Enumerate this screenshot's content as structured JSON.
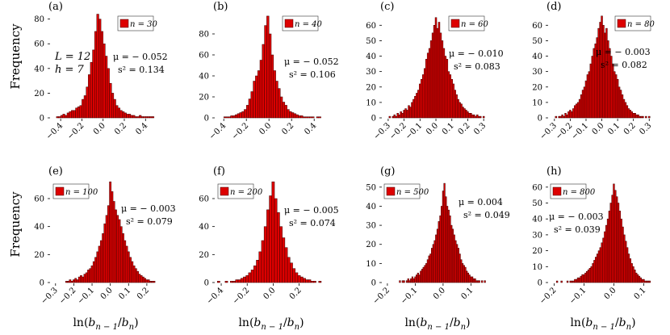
{
  "figure": {
    "ylabel": "Frequency",
    "xlabel_base": "ln(",
    "xlabel_tail": ")",
    "xlabel_num": "b",
    "xlabel_num_sub": "n − 1",
    "xlabel_slash": "/",
    "xlabel_den": "b",
    "xlabel_den_sub": "n"
  },
  "colors": {
    "bar": "#dd0000",
    "bar_edge": "#3a0000",
    "axis": "#000000"
  },
  "chart_data": [
    {
      "type": "bar",
      "panel": "(a)",
      "legend": "n = 30",
      "xlim": [
        -0.5,
        0.55
      ],
      "ylim": [
        0,
        85
      ],
      "xticks": [
        -0.4,
        -0.2,
        0.0,
        0.2,
        0.4
      ],
      "xtick_labels": [
        "−0.4",
        "−0.2",
        "0.0",
        "0.2",
        "0.4"
      ],
      "yticks": [
        0,
        20,
        40,
        60,
        80
      ],
      "ytick_labels": [
        "0",
        "20",
        "40",
        "60",
        "80"
      ],
      "mu": "μ = − 0.052",
      "s2": "s² = 0.134",
      "extra": [
        "L = 12",
        "h = 7"
      ],
      "bins_x": [
        -0.43,
        -0.41,
        -0.39,
        -0.37,
        -0.35,
        -0.33,
        -0.31,
        -0.29,
        -0.27,
        -0.25,
        -0.23,
        -0.21,
        -0.19,
        -0.17,
        -0.15,
        -0.13,
        -0.11,
        -0.09,
        -0.07,
        -0.05,
        -0.03,
        -0.01,
        0.01,
        0.03,
        0.05,
        0.07,
        0.09,
        0.11,
        0.13,
        0.15,
        0.17,
        0.19,
        0.21,
        0.23,
        0.25,
        0.27,
        0.29,
        0.31,
        0.33,
        0.35,
        0.37,
        0.39,
        0.41,
        0.43,
        0.45,
        0.47
      ],
      "values": [
        1,
        1,
        2,
        3,
        2,
        4,
        5,
        6,
        6,
        8,
        9,
        10,
        15,
        18,
        25,
        35,
        45,
        55,
        70,
        84,
        80,
        70,
        60,
        50,
        40,
        28,
        20,
        15,
        10,
        8,
        6,
        5,
        4,
        3,
        3,
        2,
        2,
        1,
        1,
        2,
        1,
        1,
        1,
        1,
        1,
        1
      ]
    },
    {
      "type": "bar",
      "panel": "(b)",
      "legend": "n = 40",
      "xlim": [
        -0.48,
        0.52
      ],
      "ylim": [
        0,
        100
      ],
      "xticks": [
        -0.4,
        -0.2,
        0.0,
        0.2,
        0.4
      ],
      "xtick_labels": [
        "−0.4",
        "−0.2",
        "0.0",
        "0.2",
        "0.4"
      ],
      "yticks": [
        0,
        20,
        40,
        60,
        80
      ],
      "ytick_labels": [
        "0",
        "20",
        "40",
        "60",
        "80"
      ],
      "mu": "μ = − 0.052",
      "s2": "s² = 0.106",
      "bins_x": [
        -0.39,
        -0.37,
        -0.35,
        -0.33,
        -0.31,
        -0.29,
        -0.27,
        -0.25,
        -0.23,
        -0.21,
        -0.19,
        -0.17,
        -0.15,
        -0.13,
        -0.11,
        -0.09,
        -0.07,
        -0.05,
        -0.03,
        -0.01,
        0.01,
        0.03,
        0.05,
        0.07,
        0.09,
        0.11,
        0.13,
        0.15,
        0.17,
        0.19,
        0.21,
        0.23,
        0.25,
        0.27,
        0.29,
        0.31,
        0.33,
        0.35,
        0.37,
        0.39,
        0.41,
        0.43,
        0.45
      ],
      "values": [
        1,
        1,
        1,
        2,
        2,
        3,
        4,
        5,
        6,
        8,
        12,
        18,
        25,
        35,
        40,
        45,
        55,
        70,
        88,
        97,
        80,
        60,
        45,
        35,
        28,
        20,
        15,
        12,
        8,
        6,
        5,
        4,
        3,
        2,
        2,
        1,
        1,
        1,
        1,
        1,
        0,
        1,
        1
      ]
    },
    {
      "type": "bar",
      "panel": "(c)",
      "legend": "n = 60",
      "xlim": [
        -0.34,
        0.36
      ],
      "ylim": [
        0,
        68
      ],
      "xticks": [
        -0.3,
        -0.2,
        -0.1,
        0.0,
        0.1,
        0.2,
        0.3
      ],
      "xtick_labels": [
        "−0.3",
        "−0.2",
        "−0.1",
        "0.0",
        "0.1",
        "0.2",
        "0.3"
      ],
      "yticks": [
        0,
        10,
        20,
        30,
        40,
        50,
        60
      ],
      "ytick_labels": [
        "0",
        "10",
        "20",
        "30",
        "40",
        "50",
        "60"
      ],
      "mu": "μ = − 0.010",
      "s2": "s² = 0.083",
      "bins_x": [
        -0.29,
        -0.28,
        -0.27,
        -0.26,
        -0.25,
        -0.24,
        -0.23,
        -0.22,
        -0.21,
        -0.2,
        -0.19,
        -0.18,
        -0.17,
        -0.16,
        -0.15,
        -0.14,
        -0.13,
        -0.12,
        -0.11,
        -0.1,
        -0.09,
        -0.08,
        -0.07,
        -0.06,
        -0.05,
        -0.04,
        -0.03,
        -0.02,
        -0.01,
        0.0,
        0.01,
        0.02,
        0.03,
        0.04,
        0.05,
        0.06,
        0.07,
        0.08,
        0.09,
        0.1,
        0.11,
        0.12,
        0.13,
        0.14,
        0.15,
        0.16,
        0.17,
        0.18,
        0.19,
        0.2,
        0.21,
        0.22,
        0.23,
        0.24,
        0.25,
        0.26,
        0.27,
        0.28,
        0.29,
        0.3
      ],
      "values": [
        1,
        0,
        1,
        2,
        1,
        3,
        2,
        4,
        3,
        5,
        6,
        5,
        8,
        7,
        10,
        12,
        14,
        16,
        18,
        22,
        25,
        28,
        32,
        38,
        42,
        45,
        50,
        55,
        60,
        65,
        58,
        62,
        55,
        50,
        45,
        40,
        38,
        30,
        28,
        25,
        22,
        18,
        15,
        12,
        10,
        9,
        7,
        6,
        5,
        4,
        3,
        3,
        2,
        2,
        1,
        2,
        1,
        1,
        0,
        1
      ]
    },
    {
      "type": "bar",
      "panel": "(d)",
      "legend": "n = 80",
      "xlim": [
        -0.34,
        0.36
      ],
      "ylim": [
        0,
        68
      ],
      "xticks": [
        -0.3,
        -0.2,
        -0.1,
        0.0,
        0.1,
        0.2,
        0.3
      ],
      "xtick_labels": [
        "−0.3",
        "−0.2",
        "−0.1",
        "0.0",
        "0.1",
        "0.2",
        "0.3"
      ],
      "yticks": [
        0,
        10,
        20,
        30,
        40,
        50,
        60
      ],
      "ytick_labels": [
        "0",
        "10",
        "20",
        "30",
        "40",
        "50",
        "60"
      ],
      "mu": "μ = − 0.003",
      "s2": "s² = 0.082",
      "bins_x": [
        -0.29,
        -0.28,
        -0.27,
        -0.26,
        -0.25,
        -0.24,
        -0.23,
        -0.22,
        -0.21,
        -0.2,
        -0.19,
        -0.18,
        -0.17,
        -0.16,
        -0.15,
        -0.14,
        -0.13,
        -0.12,
        -0.11,
        -0.1,
        -0.09,
        -0.08,
        -0.07,
        -0.06,
        -0.05,
        -0.04,
        -0.03,
        -0.02,
        -0.01,
        0.0,
        0.01,
        0.02,
        0.03,
        0.04,
        0.05,
        0.06,
        0.07,
        0.08,
        0.09,
        0.1,
        0.11,
        0.12,
        0.13,
        0.14,
        0.15,
        0.16,
        0.17,
        0.18,
        0.19,
        0.2,
        0.21,
        0.22,
        0.23,
        0.24,
        0.25,
        0.26,
        0.27,
        0.28,
        0.29,
        0.3
      ],
      "values": [
        1,
        0,
        1,
        1,
        2,
        1,
        3,
        2,
        4,
        5,
        4,
        6,
        8,
        9,
        10,
        12,
        15,
        18,
        20,
        24,
        28,
        30,
        35,
        40,
        45,
        48,
        52,
        58,
        62,
        66,
        60,
        55,
        58,
        50,
        45,
        40,
        35,
        30,
        28,
        25,
        20,
        18,
        15,
        12,
        10,
        8,
        6,
        5,
        4,
        3,
        3,
        2,
        2,
        1,
        1,
        1,
        0,
        1,
        0,
        1
      ]
    },
    {
      "type": "bar",
      "panel": "(e)",
      "legend": "n = 100",
      "xlim": [
        -0.33,
        0.28
      ],
      "ylim": [
        0,
        75
      ],
      "xticks": [
        -0.3,
        -0.2,
        -0.1,
        0.0,
        0.1,
        0.2
      ],
      "xtick_labels": [
        "−0.3",
        "−0.2",
        "−0.1",
        "0.0",
        "0.1",
        "0.2"
      ],
      "yticks": [
        0,
        20,
        40,
        60
      ],
      "ytick_labels": [
        "0",
        "20",
        "40",
        "60"
      ],
      "mu": "μ = − 0.003",
      "s2": "s² = 0.079",
      "bins_x": [
        -0.24,
        -0.23,
        -0.22,
        -0.21,
        -0.2,
        -0.19,
        -0.18,
        -0.17,
        -0.16,
        -0.15,
        -0.14,
        -0.13,
        -0.12,
        -0.11,
        -0.1,
        -0.09,
        -0.08,
        -0.07,
        -0.06,
        -0.05,
        -0.04,
        -0.03,
        -0.02,
        -0.01,
        0.0,
        0.01,
        0.02,
        0.03,
        0.04,
        0.05,
        0.06,
        0.07,
        0.08,
        0.09,
        0.1,
        0.11,
        0.12,
        0.13,
        0.14,
        0.15,
        0.16,
        0.17,
        0.18,
        0.19,
        0.2,
        0.21,
        0.22,
        0.23,
        0.24
      ],
      "values": [
        1,
        1,
        2,
        1,
        2,
        3,
        2,
        4,
        5,
        4,
        6,
        7,
        9,
        10,
        12,
        15,
        18,
        22,
        26,
        30,
        35,
        42,
        48,
        55,
        72,
        65,
        58,
        52,
        48,
        45,
        40,
        35,
        30,
        26,
        22,
        18,
        15,
        12,
        10,
        8,
        6,
        5,
        4,
        3,
        2,
        2,
        1,
        1,
        1
      ]
    },
    {
      "type": "bar",
      "panel": "(f)",
      "legend": "n = 200",
      "xlim": [
        -0.45,
        0.42
      ],
      "ylim": [
        0,
        75
      ],
      "xticks": [
        -0.4,
        -0.2,
        0.0,
        0.2
      ],
      "xtick_labels": [
        "−0.4",
        "−0.2",
        "0.0",
        "0.2"
      ],
      "yticks": [
        0,
        20,
        40,
        60
      ],
      "ytick_labels": [
        "0",
        "20",
        "40",
        "60"
      ],
      "mu": "μ = − 0.005",
      "s2": "s² = 0.074",
      "bins_x": [
        -0.42,
        -0.4,
        -0.38,
        -0.36,
        -0.34,
        -0.32,
        -0.3,
        -0.28,
        -0.26,
        -0.24,
        -0.22,
        -0.2,
        -0.18,
        -0.16,
        -0.14,
        -0.12,
        -0.1,
        -0.08,
        -0.06,
        -0.04,
        -0.02,
        0.0,
        0.02,
        0.04,
        0.06,
        0.08,
        0.1,
        0.12,
        0.14,
        0.16,
        0.18,
        0.2,
        0.22,
        0.24,
        0.26,
        0.28,
        0.3,
        0.32,
        0.34,
        0.36
      ],
      "values": [
        1,
        0,
        0,
        1,
        0,
        1,
        1,
        2,
        2,
        3,
        4,
        5,
        7,
        9,
        12,
        16,
        22,
        30,
        40,
        52,
        62,
        72,
        60,
        50,
        40,
        32,
        25,
        18,
        14,
        10,
        7,
        5,
        4,
        3,
        2,
        2,
        1,
        1,
        0,
        1
      ]
    },
    {
      "type": "bar",
      "panel": "(g)",
      "legend": "n = 500",
      "xlim": [
        -0.22,
        0.18
      ],
      "ylim": [
        0,
        55
      ],
      "xticks": [
        -0.2,
        -0.1,
        0.0,
        0.1
      ],
      "xtick_labels": [
        "−0.2",
        "−0.1",
        "0.0",
        "0.1"
      ],
      "yticks": [
        0,
        10,
        20,
        30,
        40,
        50
      ],
      "ytick_labels": [
        "0",
        "10",
        "20",
        "30",
        "40",
        "50"
      ],
      "mu": "μ = 0.004",
      "s2": "s² = 0.049",
      "bins_x": [
        -0.155,
        -0.15,
        -0.145,
        -0.14,
        -0.135,
        -0.13,
        -0.125,
        -0.12,
        -0.115,
        -0.11,
        -0.105,
        -0.1,
        -0.095,
        -0.09,
        -0.085,
        -0.08,
        -0.075,
        -0.07,
        -0.065,
        -0.06,
        -0.055,
        -0.05,
        -0.045,
        -0.04,
        -0.035,
        -0.03,
        -0.025,
        -0.02,
        -0.015,
        -0.01,
        -0.005,
        0.0,
        0.005,
        0.01,
        0.015,
        0.02,
        0.025,
        0.03,
        0.035,
        0.04,
        0.045,
        0.05,
        0.055,
        0.06,
        0.065,
        0.07,
        0.075,
        0.08,
        0.085,
        0.09,
        0.095,
        0.1,
        0.105,
        0.11,
        0.115,
        0.12,
        0.125,
        0.13,
        0.135,
        0.14,
        0.145,
        0.15
      ],
      "values": [
        1,
        0,
        1,
        1,
        0,
        1,
        2,
        1,
        2,
        3,
        2,
        3,
        4,
        5,
        4,
        6,
        7,
        8,
        9,
        10,
        12,
        14,
        15,
        18,
        20,
        22,
        25,
        28,
        32,
        35,
        40,
        48,
        52,
        45,
        40,
        38,
        35,
        30,
        28,
        25,
        22,
        20,
        18,
        15,
        12,
        10,
        9,
        8,
        6,
        5,
        4,
        3,
        3,
        2,
        2,
        1,
        1,
        1,
        0,
        1,
        0,
        1
      ]
    },
    {
      "type": "bar",
      "panel": "(h)",
      "legend": "n = 800",
      "xlim": [
        -0.22,
        0.15
      ],
      "ylim": [
        0,
        66
      ],
      "xticks": [
        -0.2,
        -0.1,
        0.0,
        0.1
      ],
      "xtick_labels": [
        "−0.2",
        "−0.1",
        "0.0",
        "0.1"
      ],
      "yticks": [
        0,
        10,
        20,
        30,
        40,
        50,
        60
      ],
      "ytick_labels": [
        "0",
        "10",
        "20",
        "30",
        "40",
        "50",
        "60"
      ],
      "mu": "μ = − 0.003",
      "s2": "s² = 0.039",
      "bins_x": [
        -0.19,
        -0.185,
        -0.18,
        -0.175,
        -0.17,
        -0.165,
        -0.16,
        -0.155,
        -0.15,
        -0.145,
        -0.14,
        -0.135,
        -0.13,
        -0.125,
        -0.12,
        -0.115,
        -0.11,
        -0.105,
        -0.1,
        -0.095,
        -0.09,
        -0.085,
        -0.08,
        -0.075,
        -0.07,
        -0.065,
        -0.06,
        -0.055,
        -0.05,
        -0.045,
        -0.04,
        -0.035,
        -0.03,
        -0.025,
        -0.02,
        -0.015,
        -0.01,
        -0.005,
        0.0,
        0.005,
        0.01,
        0.015,
        0.02,
        0.025,
        0.03,
        0.035,
        0.04,
        0.045,
        0.05,
        0.055,
        0.06,
        0.065,
        0.07,
        0.075,
        0.08,
        0.085,
        0.09,
        0.095,
        0.1,
        0.105,
        0.11,
        0.115,
        0.12
      ],
      "values": [
        1,
        0,
        0,
        1,
        0,
        0,
        0,
        1,
        0,
        1,
        1,
        1,
        2,
        2,
        3,
        3,
        4,
        5,
        5,
        6,
        7,
        8,
        9,
        10,
        12,
        14,
        16,
        18,
        20,
        22,
        25,
        28,
        32,
        36,
        40,
        45,
        50,
        55,
        62,
        58,
        54,
        50,
        45,
        40,
        35,
        30,
        26,
        22,
        18,
        15,
        12,
        10,
        8,
        6,
        5,
        4,
        3,
        2,
        2,
        1,
        1,
        1,
        1
      ]
    }
  ]
}
